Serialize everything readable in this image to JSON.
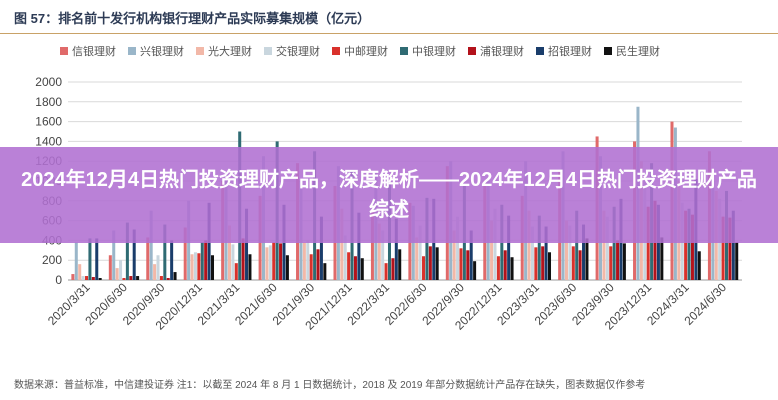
{
  "figure": {
    "title": "图 57：排名前十发行机构银行理财产品实际募集规模（亿元）"
  },
  "overlay": {
    "headline": "2024年12月4日热门投资理财产品，深度解析——2024年12月4日热门投资理财产品综述"
  },
  "footer": {
    "source": "数据来源：普益标准，中信建投证券  注1：以截至 2024 年 8 月 1 日数据统计，2018 及 2019 年部分数据统计产品存在缺失，图表数据仅作参考"
  },
  "colors": {
    "信银理财": "#e06a6a",
    "兴银理财": "#9ab6c9",
    "光大理财": "#f2b8a8",
    "交银理财": "#c9d6de",
    "中邮理财": "#d9312b",
    "中银理财": "#2f6b73",
    "浦银理财": "#b3121b",
    "招银理财": "#1a3d6b",
    "民生理财": "#111111"
  },
  "chart_data": {
    "type": "bar",
    "title": "图 57：排名前十发行机构银行理财产品实际募集规模（亿元）",
    "xlabel": "",
    "ylabel": "",
    "ylim": [
      0,
      2000
    ],
    "yticks": [
      0,
      200,
      400,
      600,
      800,
      1000,
      1200,
      1400,
      1600,
      1800,
      2000
    ],
    "grid": true,
    "legend_position": "top",
    "categories": [
      "2020/3/31",
      "2020/6/30",
      "2020/9/30",
      "2020/12/31",
      "2021/3/31",
      "2021/6/30",
      "2021/9/30",
      "2021/12/31",
      "2022/3/31",
      "2022/6/30",
      "2022/9/30",
      "2022/12/31",
      "2023/3/31",
      "2023/6/30",
      "2023/9/30",
      "2023/12/31",
      "2024/3/31",
      "2024/6/30"
    ],
    "series": [
      {
        "name": "信银理财",
        "values": [
          60,
          250,
          430,
          530,
          1000,
          850,
          1180,
          950,
          700,
          780,
          1150,
          1000,
          850,
          1100,
          1450,
          1400,
          1600,
          1300
        ]
      },
      {
        "name": "兴银理财",
        "values": [
          380,
          500,
          700,
          800,
          1050,
          1250,
          1000,
          1150,
          1100,
          750,
          1200,
          1000,
          1200,
          1300,
          1250,
          1750,
          1540,
          1000
        ]
      },
      {
        "name": "光大理财",
        "values": [
          160,
          120,
          160,
          260,
          550,
          330,
          380,
          720,
          570,
          430,
          500,
          600,
          700,
          600,
          700,
          1200,
          1000,
          900
        ]
      },
      {
        "name": "交银理财",
        "values": [
          40,
          200,
          250,
          280,
          360,
          350,
          400,
          450,
          500,
          550,
          640,
          720,
          540,
          550,
          640,
          1000,
          780,
          820
        ]
      },
      {
        "name": "中邮理财",
        "values": [
          40,
          20,
          40,
          270,
          170,
          380,
          260,
          280,
          170,
          240,
          320,
          240,
          330,
          340,
          340,
          740,
          700,
          640
        ]
      },
      {
        "name": "中银理财",
        "values": [
          420,
          580,
          560,
          380,
          1500,
          1400,
          1300,
          1100,
          1000,
          830,
          950,
          760,
          650,
          700,
          740,
          1180,
          720,
          900
        ]
      },
      {
        "name": "浦银理财",
        "values": [
          30,
          40,
          20,
          400,
          420,
          370,
          310,
          240,
          220,
          340,
          300,
          300,
          340,
          300,
          400,
          800,
          660,
          630
        ]
      },
      {
        "name": "招银理财",
        "values": [
          420,
          510,
          400,
          780,
          720,
          760,
          640,
          680,
          620,
          820,
          500,
          650,
          540,
          560,
          820,
          760,
          1020,
          700
        ]
      },
      {
        "name": "民生理财",
        "values": [
          20,
          40,
          80,
          250,
          260,
          250,
          170,
          220,
          310,
          330,
          190,
          230,
          280,
          420,
          370,
          430,
          290,
          380
        ]
      }
    ]
  }
}
